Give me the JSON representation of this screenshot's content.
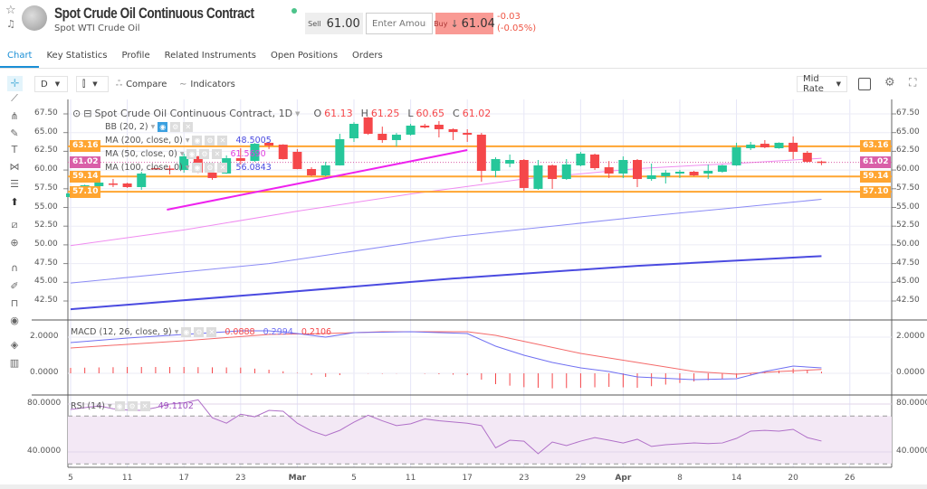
{
  "header": {
    "title": "Spot Crude Oil Continuous Contract",
    "subtitle": "Spot WTI Crude Oil",
    "sell_label": "Sell",
    "sell_price": "61.00",
    "amount_placeholder": "Enter Amount",
    "buy_label": "Buy",
    "buy_arrow": "↓",
    "buy_price": "61.04",
    "change": "-0.03",
    "change_pct": "(-0.05%)",
    "status_color": "#4cc38a"
  },
  "tabs": [
    {
      "label": "Chart",
      "active": true
    },
    {
      "label": "Key Statistics"
    },
    {
      "label": "Profile"
    },
    {
      "label": "Related Instruments"
    },
    {
      "label": "Open Positions"
    },
    {
      "label": "Orders"
    }
  ],
  "toolbar": {
    "interval": "D",
    "chart_type_icon": "candlestick-icon",
    "compare": "Compare",
    "indicators": "Indicators",
    "rate": "Mid Rate"
  },
  "side_tools": [
    "crosshair-icon",
    "trend-line-icon",
    "pitchfork-icon",
    "brush-icon",
    "text-icon",
    "pattern-icon",
    "fib-icon",
    "arrow-icon",
    "ruler-icon",
    "zoom-in-icon",
    "magnet-icon",
    "lock-drawings-icon",
    "lock-icon",
    "eye-icon",
    "layers-icon",
    "trash-icon"
  ],
  "legend": {
    "symbol": "Spot Crude Oil Continuous Contract, 1D",
    "o": "61.13",
    "h": "61.25",
    "l": "60.65",
    "c": "61.02",
    "bb": "BB (20, 2)",
    "ma200": "MA (200, close, 0)",
    "ma200_val": "48.5005",
    "ma50": "MA (50, close, 0)",
    "ma50_val": "61.5690",
    "ma100": "MA (100, close, 0)",
    "ma100_val": "56.0843",
    "macd": "MACD (12, 26, close, 9)",
    "macd_hist": "0.0888",
    "macd_val": "0.2994",
    "macd_signal": "0.2106",
    "rsi": "RSI (14)",
    "rsi_val": "49.1102"
  },
  "chart_data": {
    "type": "candlestick",
    "colors": {
      "up": "#26c79a",
      "down": "#f5474a",
      "ma50": "#f08cf0",
      "ma100": "#8c8cf5",
      "ma200": "#4a4ae0",
      "level": "#ffa531",
      "last": "#d95fa8",
      "trend": "#ee22ee",
      "macd": "#6f6ff2",
      "signal": "#f46a6a",
      "rsi": "#b070c8"
    },
    "price_axis": {
      "min": 40,
      "max": 67.5,
      "ticks": [
        "67.50",
        "65.00",
        "62.50",
        "60.00",
        "57.50",
        "55.00",
        "52.50",
        "50.00",
        "47.50",
        "45.00",
        "42.50"
      ]
    },
    "x_ticks": [
      {
        "i": 0,
        "label": "5"
      },
      {
        "i": 4,
        "label": "11"
      },
      {
        "i": 8,
        "label": "17"
      },
      {
        "i": 12,
        "label": "23"
      },
      {
        "i": 16,
        "label": "Mar"
      },
      {
        "i": 20,
        "label": "5"
      },
      {
        "i": 24,
        "label": "11"
      },
      {
        "i": 28,
        "label": "17"
      },
      {
        "i": 32,
        "label": "23"
      },
      {
        "i": 36,
        "label": "29"
      },
      {
        "i": 39,
        "label": "Apr"
      },
      {
        "i": 43,
        "label": "8"
      },
      {
        "i": 47,
        "label": "14"
      },
      {
        "i": 51,
        "label": "20"
      },
      {
        "i": 55,
        "label": "26"
      }
    ],
    "ohlc": [
      [
        56.39,
        56.95,
        56.3,
        56.87
      ],
      [
        57.23,
        58.05,
        57.1,
        57.96
      ],
      [
        57.84,
        58.56,
        57.23,
        58.32
      ],
      [
        58.2,
        58.8,
        57.72,
        58.08
      ],
      [
        58.2,
        58.3,
        57.6,
        57.72
      ],
      [
        57.72,
        59.77,
        57.36,
        59.53
      ],
      [
        60.25,
        60.3,
        60.1,
        60.13
      ],
      [
        60.2,
        60.62,
        59.41,
        60.1
      ],
      [
        60.01,
        62.19,
        59.65,
        61.82
      ],
      [
        61.82,
        61.9,
        59.6,
        59.65
      ],
      [
        59.65,
        59.77,
        58.7,
        58.93
      ],
      [
        59.53,
        61.95,
        59.5,
        61.58
      ],
      [
        61.58,
        62.91,
        60.74,
        61.22
      ],
      [
        61.22,
        63.6,
        61.1,
        63.51
      ],
      [
        63.64,
        63.76,
        62.8,
        63.27
      ],
      [
        63.39,
        63.45,
        61.4,
        61.46
      ],
      [
        62.43,
        62.8,
        60.1,
        60.13
      ],
      [
        60.13,
        60.37,
        59.17,
        59.29
      ],
      [
        59.29,
        61.1,
        59.17,
        60.62
      ],
      [
        60.62,
        64.84,
        60.6,
        64.12
      ],
      [
        64.24,
        66.4,
        63.76,
        66.17
      ],
      [
        67.02,
        67.1,
        64.7,
        64.84
      ],
      [
        64.84,
        65.8,
        63.64,
        64.0
      ],
      [
        64.0,
        64.95,
        63.15,
        64.72
      ],
      [
        64.72,
        66.17,
        64.6,
        65.93
      ],
      [
        65.93,
        66.17,
        65.57,
        65.69
      ],
      [
        66.05,
        66.53,
        64.36,
        65.45
      ],
      [
        65.45,
        65.57,
        64.0,
        65.08
      ],
      [
        64.96,
        65.45,
        63.76,
        64.72
      ],
      [
        64.72,
        64.96,
        58.44,
        59.89
      ],
      [
        59.89,
        61.7,
        59.05,
        61.46
      ],
      [
        60.86,
        62.07,
        60.37,
        61.34
      ],
      [
        61.34,
        61.46,
        57.23,
        57.6
      ],
      [
        57.48,
        61.34,
        57.36,
        60.62
      ],
      [
        60.62,
        60.74,
        57.48,
        58.8
      ],
      [
        58.8,
        61.46,
        58.68,
        60.74
      ],
      [
        60.62,
        62.43,
        60.5,
        62.19
      ],
      [
        62.07,
        62.19,
        60.01,
        60.25
      ],
      [
        60.37,
        61.2,
        58.93,
        59.53
      ],
      [
        59.53,
        61.82,
        58.93,
        61.34
      ],
      [
        61.34,
        61.46,
        57.72,
        58.8
      ],
      [
        58.8,
        60.86,
        58.56,
        59.29
      ],
      [
        59.17,
        60.0,
        58.2,
        59.65
      ],
      [
        59.53,
        60.0,
        58.93,
        59.77
      ],
      [
        59.77,
        59.89,
        59.17,
        59.29
      ],
      [
        59.53,
        60.74,
        58.8,
        59.89
      ],
      [
        59.77,
        60.7,
        59.65,
        60.62
      ],
      [
        60.62,
        63.64,
        60.55,
        63.03
      ],
      [
        62.91,
        63.76,
        62.67,
        63.39
      ],
      [
        63.51,
        64.0,
        62.91,
        63.03
      ],
      [
        62.91,
        63.7,
        62.85,
        63.64
      ],
      [
        63.64,
        64.48,
        61.46,
        62.43
      ],
      [
        62.31,
        62.55,
        60.98,
        61.1
      ],
      [
        61.13,
        61.25,
        60.65,
        61.02
      ]
    ],
    "ma50": [
      [
        0,
        49.9
      ],
      [
        8,
        52.0
      ],
      [
        16,
        54.5
      ],
      [
        24,
        56.8
      ],
      [
        32,
        58.8
      ],
      [
        40,
        60.2
      ],
      [
        48,
        61.0
      ],
      [
        53,
        61.569
      ]
    ],
    "ma100": [
      [
        0,
        44.9
      ],
      [
        14,
        47.5
      ],
      [
        27,
        51.1
      ],
      [
        40,
        53.7
      ],
      [
        53,
        56.0843
      ]
    ],
    "ma200": [
      [
        0,
        41.4
      ],
      [
        14,
        43.5
      ],
      [
        27,
        45.5
      ],
      [
        40,
        47.2
      ],
      [
        53,
        48.5005
      ]
    ],
    "levels": [
      {
        "value": "63.16"
      },
      {
        "value": "59.14"
      },
      {
        "value": "57.10"
      }
    ],
    "last_price": "61.02",
    "trend_line": [
      [
        6.8,
        54.7
      ],
      [
        28,
        62.67
      ]
    ],
    "macd": {
      "axis": {
        "min": -1.2,
        "max": 2.9,
        "ticks": [
          "2.0000",
          "0.0000"
        ]
      },
      "macd": [
        [
          0,
          1.7
        ],
        [
          4,
          1.95
        ],
        [
          8,
          2.15
        ],
        [
          12,
          2.35
        ],
        [
          14,
          2.35
        ],
        [
          16,
          2.2
        ],
        [
          18,
          2.0
        ],
        [
          20,
          2.25
        ],
        [
          24,
          2.3
        ],
        [
          28,
          2.2
        ],
        [
          30,
          1.5
        ],
        [
          32,
          1.0
        ],
        [
          34,
          0.6
        ],
        [
          36,
          0.3
        ],
        [
          38,
          0.1
        ],
        [
          40,
          -0.2
        ],
        [
          44,
          -0.35
        ],
        [
          47,
          -0.3
        ],
        [
          49,
          0.1
        ],
        [
          51,
          0.4
        ],
        [
          53,
          0.2994
        ]
      ],
      "signal": [
        [
          0,
          1.4
        ],
        [
          8,
          1.8
        ],
        [
          14,
          2.15
        ],
        [
          18,
          2.2
        ],
        [
          22,
          2.3
        ],
        [
          28,
          2.3
        ],
        [
          30,
          2.1
        ],
        [
          33,
          1.6
        ],
        [
          36,
          1.1
        ],
        [
          40,
          0.6
        ],
        [
          44,
          0.1
        ],
        [
          47,
          -0.05
        ],
        [
          50,
          0.1
        ],
        [
          53,
          0.2106
        ]
      ]
    },
    "rsi": {
      "axis": {
        "min": 27,
        "max": 87,
        "ticks": [
          "80.0000",
          "40.0000"
        ]
      },
      "bands": [
        30,
        70
      ],
      "values": [
        75.5,
        77,
        78.5,
        76,
        75,
        74.7,
        77,
        80,
        81,
        83.5,
        68.5,
        64,
        71.5,
        69.4,
        74.7,
        74,
        64,
        57.5,
        53.6,
        58,
        64.9,
        70.6,
        66,
        62,
        63.5,
        67.5,
        66,
        65,
        64,
        62,
        43.4,
        49.8,
        49,
        38.5,
        48.3,
        45.3,
        49,
        52,
        49.8,
        47.5,
        50.6,
        44.6,
        46,
        46.8,
        47.5,
        47,
        47.5,
        51.3,
        57.4,
        58,
        57.4,
        58.9,
        52,
        49.1102
      ]
    }
  }
}
